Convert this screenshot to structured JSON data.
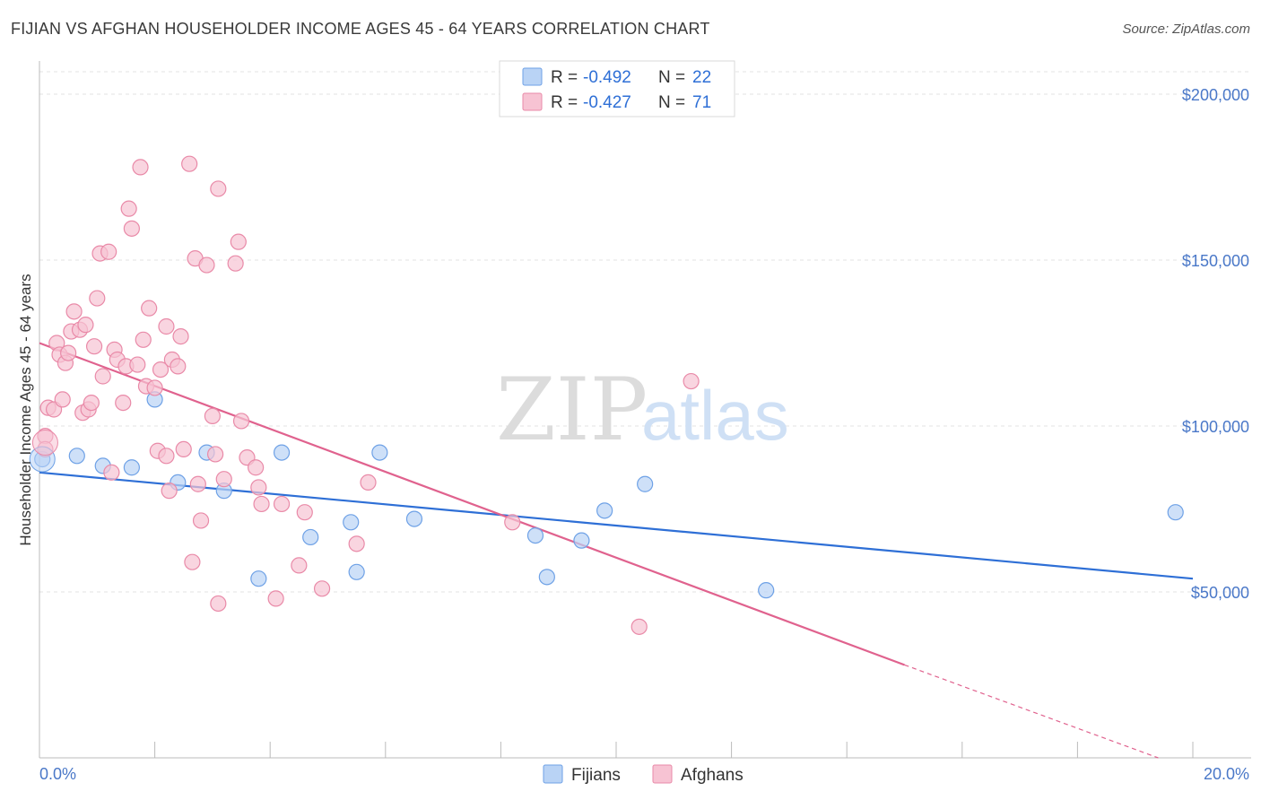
{
  "title": "FIJIAN VS AFGHAN HOUSEHOLDER INCOME AGES 45 - 64 YEARS CORRELATION CHART",
  "source": "Source: ZipAtlas.com",
  "watermark": {
    "zip": "ZIP",
    "atlas": "atlas"
  },
  "legend": {
    "r_label": "R = ",
    "n_label": "N = ",
    "rows": [
      {
        "r": "-0.492",
        "n": "22",
        "color": "#aecbf5"
      },
      {
        "r": "-0.427",
        "n": "71",
        "color": "#f7bfd0"
      }
    ]
  },
  "chart_data": {
    "type": "scatter",
    "xlabel": "",
    "ylabel": "Householder Income Ages 45 - 64 years",
    "xlim": [
      0,
      20
    ],
    "ylim": [
      0,
      210000
    ],
    "x_tick_labels": [
      "0.0%",
      "20.0%"
    ],
    "y_ticks": [
      50000,
      100000,
      150000,
      200000
    ],
    "y_tick_labels": [
      "$50,000",
      "$100,000",
      "$150,000",
      "$200,000"
    ],
    "grid": true,
    "legend_position": "top-center",
    "series": [
      {
        "name": "Fijians",
        "color": "#6ea1e6",
        "fill": "#b9d3f5",
        "trend": {
          "x0": 0,
          "y0": 86000,
          "x1": 20,
          "y1": 54000,
          "color": "#2e6fd6"
        },
        "points": [
          [
            0.05,
            90000
          ],
          [
            0.65,
            91000
          ],
          [
            1.1,
            88000
          ],
          [
            1.6,
            87500
          ],
          [
            2.0,
            108000
          ],
          [
            2.4,
            83000
          ],
          [
            2.9,
            92000
          ],
          [
            3.2,
            80500
          ],
          [
            3.8,
            54000
          ],
          [
            4.2,
            92000
          ],
          [
            4.7,
            66500
          ],
          [
            5.4,
            71000
          ],
          [
            5.5,
            56000
          ],
          [
            5.9,
            92000
          ],
          [
            6.5,
            72000
          ],
          [
            8.6,
            67000
          ],
          [
            8.8,
            54500
          ],
          [
            9.4,
            65500
          ],
          [
            9.8,
            74500
          ],
          [
            10.5,
            82500
          ],
          [
            12.6,
            50500
          ],
          [
            19.7,
            74000
          ]
        ]
      },
      {
        "name": "Afghans",
        "color": "#e98aa8",
        "fill": "#f7c3d3",
        "trend": {
          "x0": 0,
          "y0": 125000,
          "x1": 15,
          "y1": 28000,
          "color": "#e0628e",
          "dash_to": [
            19.4,
            0
          ]
        },
        "points": [
          [
            0.1,
            97000
          ],
          [
            0.1,
            93000
          ],
          [
            0.15,
            105500
          ],
          [
            0.25,
            105000
          ],
          [
            0.3,
            125000
          ],
          [
            0.35,
            121500
          ],
          [
            0.4,
            108000
          ],
          [
            0.45,
            119000
          ],
          [
            0.5,
            122000
          ],
          [
            0.55,
            128500
          ],
          [
            0.6,
            134500
          ],
          [
            0.7,
            129000
          ],
          [
            0.75,
            104000
          ],
          [
            0.8,
            130500
          ],
          [
            0.85,
            105000
          ],
          [
            0.9,
            107000
          ],
          [
            0.95,
            124000
          ],
          [
            1.0,
            138500
          ],
          [
            1.05,
            152000
          ],
          [
            1.1,
            115000
          ],
          [
            1.2,
            152500
          ],
          [
            1.25,
            86000
          ],
          [
            1.3,
            123000
          ],
          [
            1.35,
            120000
          ],
          [
            1.45,
            107000
          ],
          [
            1.5,
            118000
          ],
          [
            1.55,
            165500
          ],
          [
            1.6,
            159500
          ],
          [
            1.7,
            118500
          ],
          [
            1.75,
            178000
          ],
          [
            1.8,
            126000
          ],
          [
            1.85,
            112000
          ],
          [
            1.9,
            135500
          ],
          [
            2.0,
            111500
          ],
          [
            2.05,
            92500
          ],
          [
            2.1,
            117000
          ],
          [
            2.2,
            91000
          ],
          [
            2.2,
            130000
          ],
          [
            2.25,
            80500
          ],
          [
            2.3,
            120000
          ],
          [
            2.4,
            118000
          ],
          [
            2.45,
            127000
          ],
          [
            2.5,
            93000
          ],
          [
            2.6,
            179000
          ],
          [
            2.65,
            59000
          ],
          [
            2.7,
            150500
          ],
          [
            2.75,
            82500
          ],
          [
            2.8,
            71500
          ],
          [
            2.9,
            148500
          ],
          [
            3.0,
            103000
          ],
          [
            3.05,
            91500
          ],
          [
            3.1,
            171500
          ],
          [
            3.1,
            46500
          ],
          [
            3.2,
            84000
          ],
          [
            3.4,
            149000
          ],
          [
            3.45,
            155500
          ],
          [
            3.5,
            101500
          ],
          [
            3.6,
            90500
          ],
          [
            3.75,
            87500
          ],
          [
            3.8,
            81500
          ],
          [
            3.85,
            76500
          ],
          [
            4.1,
            48000
          ],
          [
            4.2,
            76500
          ],
          [
            4.5,
            58000
          ],
          [
            4.6,
            74000
          ],
          [
            4.9,
            51000
          ],
          [
            5.5,
            64500
          ],
          [
            5.7,
            83000
          ],
          [
            8.2,
            71000
          ],
          [
            10.4,
            39500
          ],
          [
            11.3,
            113500
          ]
        ]
      }
    ]
  }
}
